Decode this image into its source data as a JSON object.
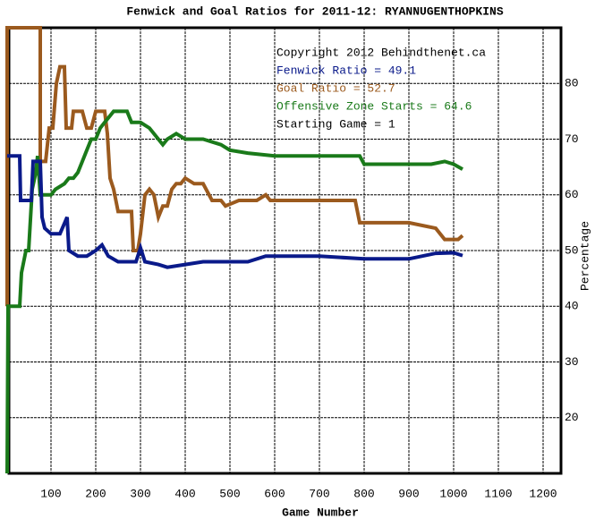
{
  "chart_data": {
    "type": "line",
    "title": "Fenwick and Goal Ratios for 2011-12: RYANNUGENTHOPKINS",
    "x_label": "Game Number",
    "y_label": "Percentage",
    "xlim": [
      6,
      1240
    ],
    "ylim": [
      10,
      90
    ],
    "xticks": [
      100,
      200,
      300,
      400,
      500,
      600,
      700,
      800,
      900,
      1000,
      1100,
      1200
    ],
    "yticks": [
      20,
      30,
      40,
      50,
      60,
      70,
      80
    ],
    "grid": true,
    "y_axis_side": "right",
    "annotations": [
      {
        "text": "Copyright 2012 Behindthenet.ca",
        "color": "#000000"
      },
      {
        "text": "Fenwick Ratio = 49.1",
        "color": "#0a1a8a"
      },
      {
        "text": "Goal Ratio = 52.7",
        "color": "#9b5a1e"
      },
      {
        "text": "Offensive Zone Starts = 64.6",
        "color": "#1a7a1a"
      },
      {
        "text": "Starting Game = 1",
        "color": "#000000"
      }
    ],
    "series": [
      {
        "name": "Goal Ratio",
        "color": "#9b5a1e",
        "x": [
          2,
          2,
          76,
          76,
          88,
          96,
          104,
          112,
          120,
          130,
          134,
          146,
          150,
          170,
          180,
          190,
          200,
          220,
          226,
          232,
          240,
          250,
          280,
          284,
          294,
          300,
          310,
          320,
          330,
          340,
          350,
          360,
          370,
          380,
          390,
          400,
          420,
          440,
          460,
          480,
          490,
          520,
          560,
          580,
          590,
          700,
          780,
          790,
          900,
          960,
          980,
          1010,
          1020
        ],
        "values": [
          40,
          90,
          90,
          66,
          66,
          72,
          72,
          80,
          83,
          83,
          72,
          72,
          75,
          75,
          72,
          72,
          75,
          75,
          71,
          63,
          61,
          57,
          57,
          50,
          50,
          53,
          60,
          61,
          60,
          56,
          58,
          58,
          61,
          62,
          62,
          63,
          62,
          62,
          59,
          59,
          58,
          59,
          59,
          60,
          59,
          59,
          59,
          55,
          55,
          54,
          52,
          52,
          52.7
        ]
      },
      {
        "name": "Offensive Zone Starts",
        "color": "#1a7a1a",
        "x": [
          2,
          4,
          30,
          34,
          44,
          50,
          58,
          66,
          70,
          76,
          100,
          110,
          130,
          140,
          150,
          160,
          170,
          180,
          190,
          200,
          210,
          220,
          230,
          240,
          270,
          280,
          300,
          320,
          350,
          360,
          380,
          400,
          440,
          480,
          500,
          540,
          600,
          700,
          790,
          800,
          900,
          950,
          980,
          1000,
          1020
        ],
        "values": [
          10,
          40,
          40,
          46,
          50,
          50,
          61,
          64,
          67,
          60,
          60,
          61,
          62,
          63,
          63,
          64,
          66,
          68,
          70,
          70,
          72,
          73,
          74,
          75,
          75,
          73,
          73,
          72,
          69,
          70,
          71,
          70,
          70,
          69,
          68,
          67.5,
          67,
          67,
          67,
          65.5,
          65.5,
          65.5,
          66,
          65.5,
          64.6
        ]
      },
      {
        "name": "Fenwick Ratio",
        "color": "#0a1a8a",
        "x": [
          2,
          30,
          32,
          56,
          60,
          76,
          80,
          86,
          100,
          120,
          136,
          140,
          160,
          180,
          200,
          214,
          228,
          250,
          290,
          300,
          310,
          340,
          360,
          400,
          440,
          540,
          580,
          700,
          800,
          900,
          960,
          1000,
          1020
        ],
        "values": [
          67,
          67,
          59,
          59,
          66,
          66,
          56,
          54,
          53,
          53,
          56,
          50,
          49,
          49,
          50,
          51,
          49,
          48,
          48,
          50.5,
          48,
          47.5,
          47,
          47.5,
          48,
          48,
          49,
          49,
          48.5,
          48.5,
          49.5,
          49.6,
          49.1
        ]
      }
    ]
  }
}
